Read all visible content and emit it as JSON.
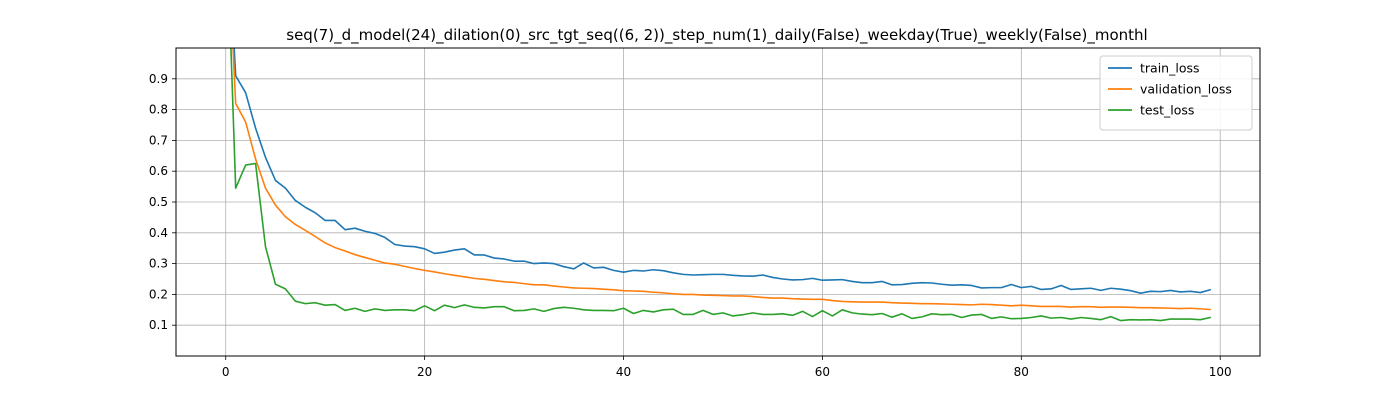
{
  "chart_data": {
    "type": "line",
    "title": "seq(7)_d_model(24)_dilation(0)_src_tgt_seq((6, 2))_step_num(1)_daily(False)_weekday(True)_weekly(False)_monthl",
    "xlabel": "",
    "ylabel": "",
    "xlim": [
      -5,
      104
    ],
    "ylim": [
      0.0,
      1.0
    ],
    "xticks": [
      0,
      20,
      40,
      60,
      80,
      100
    ],
    "yticks": [
      0.1,
      0.2,
      0.3,
      0.4,
      0.5,
      0.6,
      0.7,
      0.8,
      0.9
    ],
    "grid": true,
    "legend_position": "top-right",
    "x": [
      0,
      1,
      2,
      3,
      4,
      5,
      6,
      7,
      8,
      9,
      10,
      11,
      12,
      13,
      14,
      15,
      16,
      17,
      18,
      19,
      20,
      21,
      22,
      23,
      24,
      25,
      26,
      27,
      28,
      29,
      30,
      31,
      32,
      33,
      34,
      35,
      36,
      37,
      38,
      39,
      40,
      41,
      42,
      43,
      44,
      45,
      46,
      47,
      48,
      49,
      50,
      51,
      52,
      53,
      54,
      55,
      56,
      57,
      58,
      59,
      60,
      61,
      62,
      63,
      64,
      65,
      66,
      67,
      68,
      69,
      70,
      71,
      72,
      73,
      74,
      75,
      76,
      77,
      78,
      79,
      80,
      81,
      82,
      83,
      84,
      85,
      86,
      87,
      88,
      89,
      90,
      91,
      92,
      93,
      94,
      95,
      96,
      97,
      98,
      99
    ],
    "series": [
      {
        "name": "train_loss",
        "color": "#1f77b4",
        "values": [
          1.5,
          0.91,
          0.855,
          0.74,
          0.645,
          0.57,
          0.545,
          0.505,
          0.483,
          0.465,
          0.44,
          0.44,
          0.41,
          0.415,
          0.405,
          0.398,
          0.385,
          0.362,
          0.357,
          0.355,
          0.348,
          0.333,
          0.337,
          0.344,
          0.348,
          0.328,
          0.328,
          0.318,
          0.315,
          0.308,
          0.308,
          0.3,
          0.302,
          0.3,
          0.29,
          0.283,
          0.302,
          0.286,
          0.288,
          0.278,
          0.272,
          0.278,
          0.276,
          0.28,
          0.277,
          0.27,
          0.265,
          0.263,
          0.264,
          0.265,
          0.265,
          0.262,
          0.26,
          0.259,
          0.263,
          0.255,
          0.25,
          0.247,
          0.248,
          0.252,
          0.246,
          0.247,
          0.248,
          0.242,
          0.238,
          0.238,
          0.242,
          0.231,
          0.232,
          0.236,
          0.238,
          0.237,
          0.233,
          0.23,
          0.231,
          0.229,
          0.221,
          0.222,
          0.222,
          0.232,
          0.222,
          0.226,
          0.216,
          0.218,
          0.229,
          0.216,
          0.218,
          0.22,
          0.213,
          0.22,
          0.217,
          0.212,
          0.204,
          0.21,
          0.209,
          0.213,
          0.208,
          0.21,
          0.206,
          0.215
        ]
      },
      {
        "name": "validation_loss",
        "color": "#ff7f0e",
        "values": [
          1.5,
          0.82,
          0.76,
          0.64,
          0.545,
          0.49,
          0.452,
          0.427,
          0.408,
          0.388,
          0.367,
          0.352,
          0.341,
          0.329,
          0.32,
          0.311,
          0.302,
          0.298,
          0.291,
          0.284,
          0.278,
          0.273,
          0.267,
          0.262,
          0.257,
          0.252,
          0.249,
          0.245,
          0.241,
          0.239,
          0.235,
          0.231,
          0.231,
          0.227,
          0.224,
          0.221,
          0.22,
          0.219,
          0.217,
          0.215,
          0.212,
          0.211,
          0.21,
          0.207,
          0.205,
          0.202,
          0.2,
          0.2,
          0.198,
          0.197,
          0.196,
          0.195,
          0.195,
          0.193,
          0.19,
          0.188,
          0.188,
          0.186,
          0.185,
          0.184,
          0.184,
          0.18,
          0.177,
          0.176,
          0.175,
          0.175,
          0.175,
          0.173,
          0.172,
          0.171,
          0.17,
          0.17,
          0.169,
          0.168,
          0.167,
          0.166,
          0.168,
          0.167,
          0.165,
          0.163,
          0.165,
          0.163,
          0.161,
          0.161,
          0.161,
          0.159,
          0.16,
          0.16,
          0.158,
          0.159,
          0.159,
          0.158,
          0.157,
          0.157,
          0.156,
          0.155,
          0.154,
          0.155,
          0.153,
          0.151
        ]
      },
      {
        "name": "test_loss",
        "color": "#2ca02c",
        "values": [
          1.5,
          0.545,
          0.62,
          0.625,
          0.355,
          0.233,
          0.218,
          0.178,
          0.17,
          0.173,
          0.165,
          0.167,
          0.148,
          0.155,
          0.145,
          0.153,
          0.148,
          0.15,
          0.15,
          0.147,
          0.163,
          0.147,
          0.165,
          0.157,
          0.166,
          0.158,
          0.156,
          0.16,
          0.16,
          0.147,
          0.148,
          0.153,
          0.145,
          0.154,
          0.158,
          0.155,
          0.15,
          0.148,
          0.148,
          0.147,
          0.155,
          0.138,
          0.148,
          0.143,
          0.15,
          0.152,
          0.135,
          0.135,
          0.148,
          0.135,
          0.14,
          0.13,
          0.134,
          0.14,
          0.135,
          0.135,
          0.137,
          0.132,
          0.145,
          0.128,
          0.147,
          0.13,
          0.15,
          0.14,
          0.136,
          0.134,
          0.138,
          0.126,
          0.137,
          0.122,
          0.127,
          0.137,
          0.134,
          0.135,
          0.125,
          0.133,
          0.135,
          0.122,
          0.127,
          0.121,
          0.122,
          0.125,
          0.13,
          0.123,
          0.125,
          0.12,
          0.125,
          0.122,
          0.118,
          0.128,
          0.115,
          0.118,
          0.117,
          0.118,
          0.115,
          0.12,
          0.12,
          0.12,
          0.118,
          0.125
        ]
      }
    ]
  }
}
